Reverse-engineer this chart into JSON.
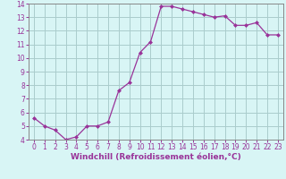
{
  "x": [
    0,
    1,
    2,
    3,
    4,
    5,
    6,
    7,
    8,
    9,
    10,
    11,
    12,
    13,
    14,
    15,
    16,
    17,
    18,
    19,
    20,
    21,
    22,
    23
  ],
  "y": [
    5.6,
    5.0,
    4.7,
    4.0,
    4.2,
    5.0,
    5.0,
    5.3,
    7.6,
    8.2,
    10.4,
    11.2,
    13.8,
    13.8,
    13.6,
    13.4,
    13.2,
    13.0,
    13.1,
    12.4,
    12.4,
    12.6,
    11.7,
    11.7
  ],
  "line_color": "#993399",
  "marker": "D",
  "marker_size": 2,
  "bg_color": "#d8f5f5",
  "grid_color": "#aacccc",
  "xlabel": "Windchill (Refroidissement éolien,°C)",
  "xlabel_color": "#993399",
  "ylim": [
    4,
    14
  ],
  "xlim": [
    -0.5,
    23.5
  ],
  "yticks": [
    4,
    5,
    6,
    7,
    8,
    9,
    10,
    11,
    12,
    13,
    14
  ],
  "xticks": [
    0,
    1,
    2,
    3,
    4,
    5,
    6,
    7,
    8,
    9,
    10,
    11,
    12,
    13,
    14,
    15,
    16,
    17,
    18,
    19,
    20,
    21,
    22,
    23
  ],
  "tick_color": "#993399",
  "tick_fontsize": 5.5,
  "xlabel_fontsize": 6.5,
  "spine_color": "#888888"
}
